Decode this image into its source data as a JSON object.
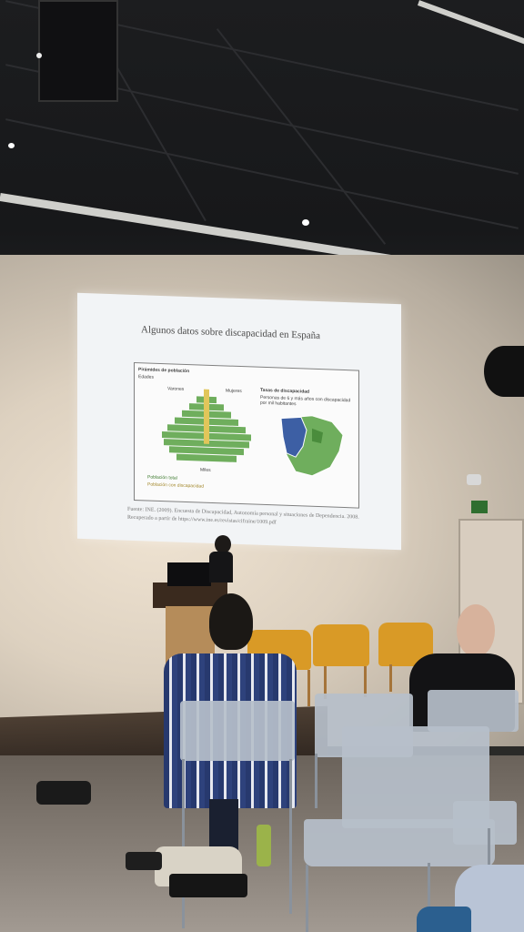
{
  "slide": {
    "title": "Algunos datos sobre discapacidad en España",
    "pyramid_title": "Pirámides de población",
    "pyramid_axis_label": "Edades",
    "pyramid_side_left": "Varones",
    "pyramid_side_right": "Mujeres",
    "pyramid_x_label": "Miles",
    "legend_total": "Población total",
    "legend_disability": "Población con discapacidad",
    "map_title": "Tasas de discapacidad",
    "map_subtitle": "Personas de 6 y más años con discapacidad por mil habitantes",
    "source": "Fuente: INE. (2009). Encuesta de Discapacidad, Autonomía personal y situaciones de Dependencia. 2008. Recuperado a partir de https://www.ine.es/revistas/cifraine/1009.pdf"
  },
  "colors": {
    "ceiling": "#1c1d1f",
    "wall": "#e7dccb",
    "chair_orange": "#d99a26",
    "chair_gray": "#b6bfca",
    "map_dark": "#3d5fa4",
    "map_green": "#6fae5d"
  }
}
